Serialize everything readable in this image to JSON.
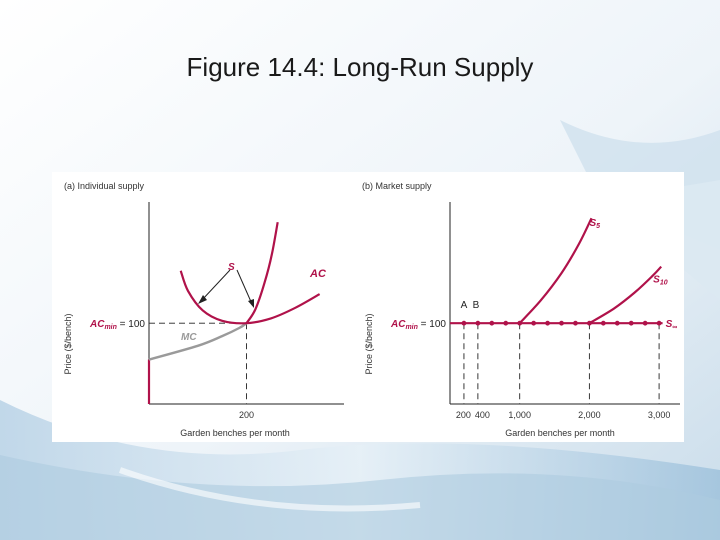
{
  "slide": {
    "title": "Figure 14.4: Long-Run Supply"
  },
  "colors": {
    "curve": "#b0124a",
    "mc": "#9a9a9a",
    "axis": "#222222",
    "text": "#333333"
  },
  "chart_data": [
    {
      "type": "line",
      "panel_title": "(a) Individual supply",
      "xlabel": "Garden benches per month",
      "ylabel": "Price ($/bench)",
      "xlim": [
        0,
        400
      ],
      "ylim": [
        0,
        250
      ],
      "x_ticks": [
        200
      ],
      "x_tick_labels": [
        "200"
      ],
      "ac_min": {
        "label_main": "AC",
        "label_sub": "min",
        "label_rest": " = 100",
        "value": 100
      },
      "series": [
        {
          "name": "MC",
          "points": [
            [
              0,
              0
            ],
            [
              0,
              55
            ],
            [
              100,
              72
            ],
            [
              150,
              84
            ],
            [
              185,
              94
            ],
            [
              200,
              100
            ],
            [
              218,
              117
            ],
            [
              237,
              150
            ],
            [
              252,
              185
            ],
            [
              264,
              225
            ]
          ]
        },
        {
          "name": "AC",
          "points": [
            [
              65,
              165
            ],
            [
              80,
              140
            ],
            [
              110,
              116
            ],
            [
              150,
              103
            ],
            [
              200,
              100
            ],
            [
              250,
              106
            ],
            [
              300,
              119
            ],
            [
              350,
              136
            ]
          ]
        }
      ],
      "annotations": {
        "s_label": "S",
        "ac_label": "AC",
        "mc_label": "MC"
      }
    },
    {
      "type": "line",
      "panel_title": "(b) Market supply",
      "xlabel": "Garden benches per month",
      "ylabel": "Price ($/bench)",
      "xlim": [
        0,
        3300
      ],
      "ylim": [
        0,
        250
      ],
      "x_ticks": [
        200,
        400,
        1000,
        2000,
        3000
      ],
      "x_tick_labels": [
        "200",
        "400",
        "1,000",
        "2,000",
        "3,000"
      ],
      "ac_min": {
        "label_main": "AC",
        "label_sub": "min",
        "label_rest": " = 100",
        "value": 100
      },
      "points_labels": [
        "A",
        "B"
      ],
      "series": [
        {
          "name": "S5",
          "label_main": "S",
          "label_sub": "5",
          "points": [
            [
              1000,
              100
            ],
            [
              1300,
              128
            ],
            [
              1600,
              162
            ],
            [
              1850,
              198
            ],
            [
              2030,
              230
            ]
          ]
        },
        {
          "name": "S10",
          "label_main": "S",
          "label_sub": "10",
          "points": [
            [
              2000,
              100
            ],
            [
              2350,
              118
            ],
            [
              2650,
              138
            ],
            [
              2900,
              158
            ],
            [
              3030,
              170
            ]
          ]
        },
        {
          "name": "S∞",
          "label_main": "S",
          "label_sub": "∞",
          "points": [
            [
              0,
              100
            ],
            [
              3050,
              100
            ]
          ]
        }
      ],
      "dots_x": [
        200,
        400,
        600,
        800,
        1000,
        1200,
        1400,
        1600,
        1800,
        2000,
        2200,
        2400,
        2600,
        2800,
        3000
      ]
    }
  ]
}
